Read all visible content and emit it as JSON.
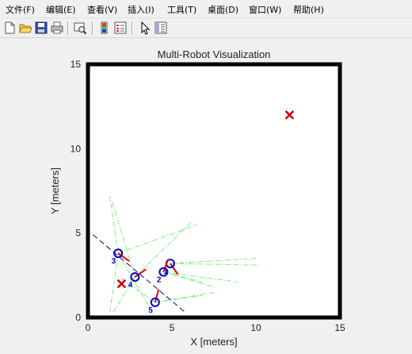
{
  "menu": [
    "文件(F)",
    "编辑(E)",
    "查看(V)",
    "插入(I)",
    "工具(T)",
    "桌面(D)",
    "窗口(W)",
    "帮助(H)"
  ],
  "toolbar": {
    "icons": [
      "new-file-icon",
      "open-folder-icon",
      "save-icon",
      "print-icon",
      "print-preview-icon",
      "colorbar-icon",
      "legend-icon",
      "pointer-icon",
      "property-editor-icon"
    ]
  },
  "colors": {
    "robot": "#0000cc",
    "heading": "#e00000",
    "target": "#cc0000",
    "sensor": "#77ee77",
    "trajectory": "#00008b"
  },
  "chart_data": {
    "type": "scatter",
    "title": "Multi-Robot Visualization",
    "xlabel": "X [meters]",
    "ylabel": "Y [meters]",
    "xlim": [
      0,
      15
    ],
    "ylim": [
      0,
      15
    ],
    "xticks": [
      0,
      5,
      10,
      15
    ],
    "yticks": [
      0,
      5,
      10,
      15
    ],
    "grid": false,
    "robots": [
      {
        "label": "1",
        "x": 4.9,
        "y": 3.2,
        "heading": -55
      },
      {
        "label": "2",
        "x": 4.5,
        "y": 2.7,
        "heading": 70
      },
      {
        "label": "3",
        "x": 1.8,
        "y": 3.8,
        "heading": -35
      },
      {
        "label": "4",
        "x": 2.8,
        "y": 2.4,
        "heading": 35
      },
      {
        "label": "5",
        "x": 4.0,
        "y": 0.9,
        "heading": 75
      }
    ],
    "targets": [
      {
        "x": 12.0,
        "y": 12.0
      },
      {
        "x": 2.0,
        "y": 2.0
      }
    ],
    "trajectories": [
      {
        "x": [
          0.3,
          5.8
        ],
        "y": [
          4.9,
          0.3
        ]
      }
    ],
    "sensor_rays": [
      {
        "from": [
          1.8,
          3.8
        ],
        "to": [
          1.3,
          7.2
        ]
      },
      {
        "from": [
          1.8,
          3.8
        ],
        "to": [
          6.5,
          5.5
        ]
      },
      {
        "from": [
          1.8,
          3.8
        ],
        "to": [
          3.9,
          0.2
        ]
      },
      {
        "from": [
          1.8,
          3.8
        ],
        "to": [
          1.3,
          0.3
        ]
      },
      {
        "from": [
          2.8,
          2.4
        ],
        "to": [
          1.4,
          7.0
        ]
      },
      {
        "from": [
          2.8,
          2.4
        ],
        "to": [
          6.2,
          5.7
        ]
      },
      {
        "from": [
          2.8,
          2.4
        ],
        "to": [
          1.5,
          0.3
        ]
      },
      {
        "from": [
          4.9,
          3.2
        ],
        "to": [
          10.0,
          3.5
        ]
      },
      {
        "from": [
          4.9,
          3.2
        ],
        "to": [
          10.1,
          3.1
        ]
      },
      {
        "from": [
          4.5,
          2.7
        ],
        "to": [
          8.9,
          2.1
        ]
      },
      {
        "from": [
          4.5,
          2.7
        ],
        "to": [
          7.5,
          1.8
        ]
      },
      {
        "from": [
          4.5,
          2.7
        ],
        "to": [
          6.8,
          2.1
        ]
      },
      {
        "from": [
          4.0,
          0.9
        ],
        "to": [
          6.8,
          1.3
        ]
      },
      {
        "from": [
          4.0,
          0.9
        ],
        "to": [
          7.6,
          1.5
        ]
      },
      {
        "from": [
          4.0,
          0.9
        ],
        "to": [
          2.0,
          2.3
        ]
      }
    ]
  }
}
